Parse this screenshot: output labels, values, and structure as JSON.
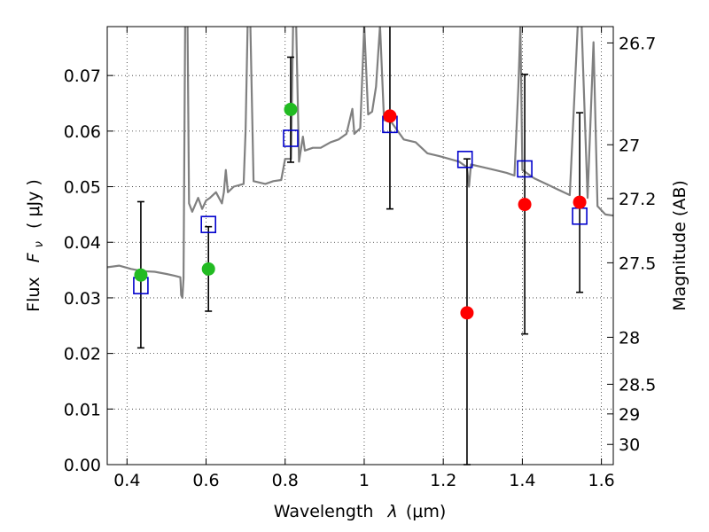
{
  "chart_data": {
    "type": "scatter",
    "title": "",
    "xlabel": {
      "prefix": "Wavelength",
      "symbol": "λ",
      "unit": "(μm)"
    },
    "ylabel": {
      "prefix": "Flux",
      "symbol": "F",
      "subscript": "ν",
      "unit": "( μJy )"
    },
    "y2label": "Magnitude (AB)",
    "xlim": [
      0.35,
      1.63
    ],
    "ylim": [
      0.0,
      0.0788
    ],
    "grid": true,
    "x_ticks": [
      0.4,
      0.6,
      0.8,
      1.0,
      1.2,
      1.4,
      1.6
    ],
    "x_tick_labels": [
      "0.4",
      "0.6",
      "0.8",
      "1",
      "1.2",
      "1.4",
      "1.6"
    ],
    "y_ticks": [
      0.0,
      0.01,
      0.02,
      0.03,
      0.04,
      0.05,
      0.06,
      0.07
    ],
    "y_tick_labels": [
      "0.00",
      "0.01",
      "0.02",
      "0.03",
      "0.04",
      "0.05",
      "0.06",
      "0.07"
    ],
    "y2_ticks": [
      {
        "mag": 26.7,
        "label": "26.7"
      },
      {
        "mag": 27.0,
        "label": "27"
      },
      {
        "mag": 27.2,
        "label": "27.2"
      },
      {
        "mag": 27.5,
        "label": "27.5"
      },
      {
        "mag": 28.0,
        "label": "28"
      },
      {
        "mag": 28.5,
        "label": "28.5"
      },
      {
        "mag": 29.0,
        "label": "29"
      },
      {
        "mag": 30.0,
        "label": "30"
      }
    ],
    "colors": {
      "sed": "#808080",
      "model": "#0000cc",
      "optical": "#22bb22",
      "nir": "#ff0000",
      "errorbar": "#000000",
      "grid": "#333333"
    },
    "series": [
      {
        "kind": "sed_model_spectrum",
        "points": [
          [
            0.35,
            0.0355
          ],
          [
            0.38,
            0.0358
          ],
          [
            0.41,
            0.0352
          ],
          [
            0.44,
            0.0348
          ],
          [
            0.47,
            0.0347
          ],
          [
            0.5,
            0.0343
          ],
          [
            0.52,
            0.034
          ],
          [
            0.535,
            0.0337
          ],
          [
            0.537,
            0.0305
          ],
          [
            0.54,
            0.03
          ],
          [
            0.543,
            0.0335
          ],
          [
            0.547,
            0.079
          ],
          [
            0.553,
            0.079
          ],
          [
            0.557,
            0.047
          ],
          [
            0.565,
            0.0455
          ],
          [
            0.58,
            0.048
          ],
          [
            0.59,
            0.046
          ],
          [
            0.6,
            0.0475
          ],
          [
            0.61,
            0.048
          ],
          [
            0.625,
            0.049
          ],
          [
            0.64,
            0.047
          ],
          [
            0.645,
            0.049
          ],
          [
            0.65,
            0.053
          ],
          [
            0.655,
            0.049
          ],
          [
            0.67,
            0.05
          ],
          [
            0.695,
            0.0505
          ],
          [
            0.7,
            0.06
          ],
          [
            0.705,
            0.079
          ],
          [
            0.712,
            0.079
          ],
          [
            0.72,
            0.051
          ],
          [
            0.75,
            0.0505
          ],
          [
            0.77,
            0.051
          ],
          [
            0.79,
            0.0512
          ],
          [
            0.8,
            0.055
          ],
          [
            0.815,
            0.055
          ],
          [
            0.82,
            0.079
          ],
          [
            0.828,
            0.079
          ],
          [
            0.835,
            0.0545
          ],
          [
            0.845,
            0.059
          ],
          [
            0.85,
            0.0565
          ],
          [
            0.87,
            0.057
          ],
          [
            0.89,
            0.057
          ],
          [
            0.915,
            0.058
          ],
          [
            0.935,
            0.0585
          ],
          [
            0.955,
            0.0595
          ],
          [
            0.97,
            0.064
          ],
          [
            0.975,
            0.0595
          ],
          [
            0.99,
            0.0605
          ],
          [
            1.0,
            0.079
          ],
          [
            1.01,
            0.063
          ],
          [
            1.02,
            0.0635
          ],
          [
            1.03,
            0.068
          ],
          [
            1.04,
            0.079
          ],
          [
            1.05,
            0.062
          ],
          [
            1.07,
            0.0615
          ],
          [
            1.1,
            0.0585
          ],
          [
            1.13,
            0.058
          ],
          [
            1.16,
            0.056
          ],
          [
            1.19,
            0.0555
          ],
          [
            1.215,
            0.055
          ],
          [
            1.24,
            0.0545
          ],
          [
            1.26,
            0.0535
          ],
          [
            1.265,
            0.05
          ],
          [
            1.27,
            0.054
          ],
          [
            1.3,
            0.0535
          ],
          [
            1.33,
            0.053
          ],
          [
            1.36,
            0.0525
          ],
          [
            1.38,
            0.052
          ],
          [
            1.39,
            0.068
          ],
          [
            1.395,
            0.079
          ],
          [
            1.4,
            0.053
          ],
          [
            1.43,
            0.0515
          ],
          [
            1.46,
            0.0505
          ],
          [
            1.49,
            0.0495
          ],
          [
            1.52,
            0.0485
          ],
          [
            1.54,
            0.079
          ],
          [
            1.55,
            0.079
          ],
          [
            1.565,
            0.048
          ],
          [
            1.58,
            0.076
          ],
          [
            1.59,
            0.0465
          ],
          [
            1.61,
            0.045
          ],
          [
            1.63,
            0.0448
          ]
        ]
      },
      {
        "kind": "model_photometry",
        "marker": "open-square",
        "points": [
          {
            "x": 0.435,
            "y": 0.0322
          },
          {
            "x": 0.606,
            "y": 0.0432
          },
          {
            "x": 0.814,
            "y": 0.0587
          },
          {
            "x": 1.065,
            "y": 0.0612
          },
          {
            "x": 1.255,
            "y": 0.0549
          },
          {
            "x": 1.406,
            "y": 0.0532
          },
          {
            "x": 1.545,
            "y": 0.0447
          }
        ]
      },
      {
        "kind": "observed_optical",
        "marker": "filled-circle",
        "points": [
          {
            "x": 0.435,
            "y": 0.0341,
            "ylo": 0.021,
            "yhi": 0.0473
          },
          {
            "x": 0.606,
            "y": 0.0352,
            "ylo": 0.0276,
            "yhi": 0.0428
          },
          {
            "x": 0.814,
            "y": 0.0639,
            "ylo": 0.0544,
            "yhi": 0.0733
          }
        ]
      },
      {
        "kind": "observed_nir",
        "marker": "filled-circle",
        "points": [
          {
            "x": 1.065,
            "y": 0.0627,
            "ylo": 0.046,
            "yhi": 0.079
          },
          {
            "x": 1.26,
            "y": 0.0273,
            "ylo": 0.0,
            "yhi": 0.055
          },
          {
            "x": 1.406,
            "y": 0.0468,
            "ylo": 0.0235,
            "yhi": 0.0702
          },
          {
            "x": 1.545,
            "y": 0.0472,
            "ylo": 0.031,
            "yhi": 0.0633
          }
        ]
      }
    ]
  }
}
